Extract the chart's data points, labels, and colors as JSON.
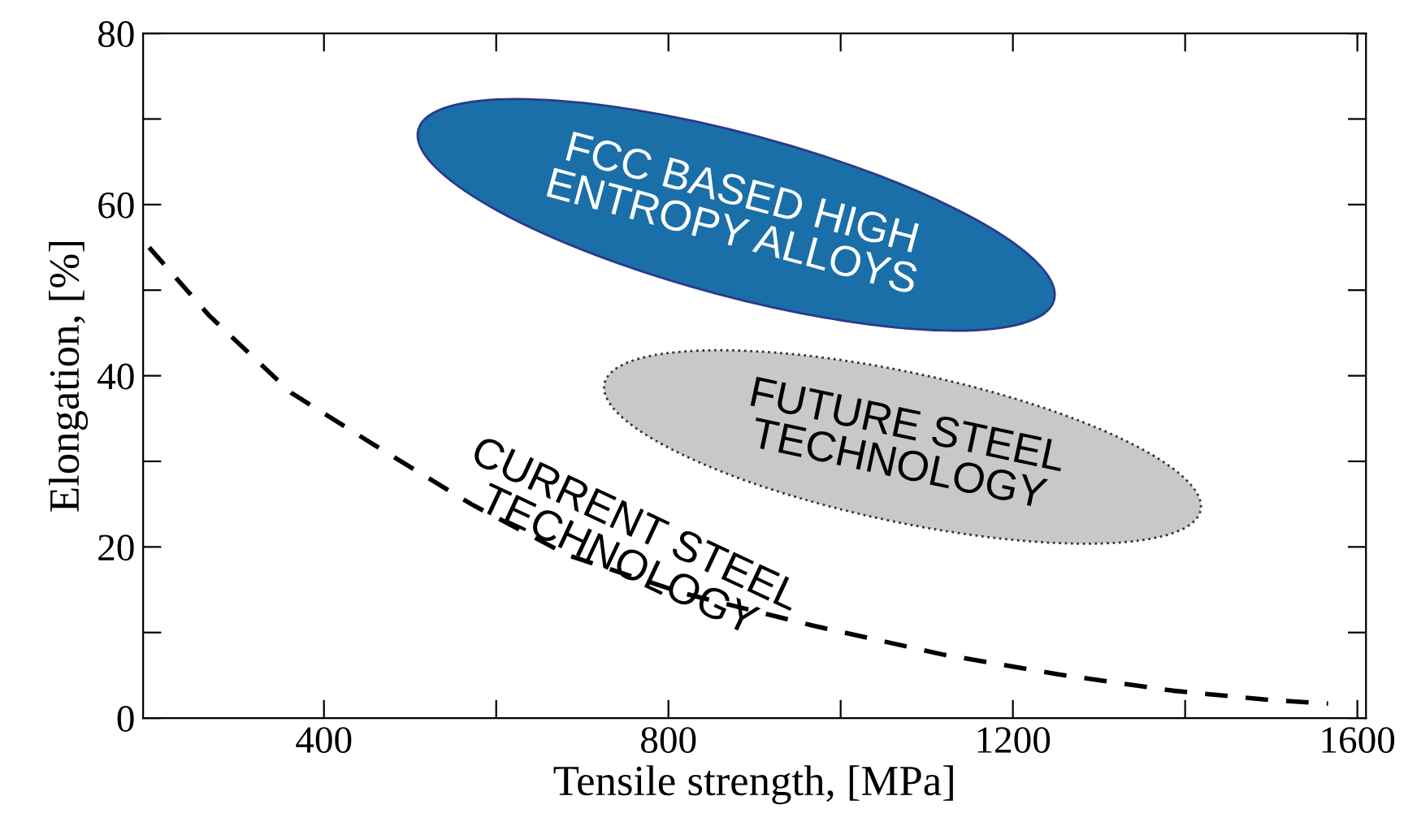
{
  "chart_data": {
    "type": "line",
    "xlabel": "Tensile strength, [MPa]",
    "ylabel": "Elongation, [%]",
    "x": [
      197,
      267,
      362,
      457,
      571,
      684,
      817,
      968,
      1120,
      1253,
      1386,
      1500,
      1566
    ],
    "series": [
      {
        "color": "#000000",
        "values": [
          55,
          47,
          38,
          32,
          25,
          19,
          14.6,
          10.8,
          7.4,
          5.1,
          3.2,
          2.1,
          1.7
        ]
      }
    ],
    "line_style": "dashed",
    "marker": "none",
    "grid": false,
    "legend": false,
    "xlim": [
      190,
      1610
    ],
    "xticks": [
      400,
      {
        "value": 600,
        "label": null
      },
      800,
      {
        "value": 1000,
        "label": null
      },
      1200,
      {
        "value": 1400,
        "label": null
      },
      1600
    ],
    "ylim": [
      0,
      80
    ],
    "yticks": [
      0,
      {
        "value": 10,
        "label": null
      },
      20,
      {
        "value": 30,
        "label": null
      },
      40,
      {
        "value": 50,
        "label": null
      },
      60,
      {
        "value": 70,
        "label": null
      },
      80
    ],
    "annotations": [
      "FCC BASED HIGH\nENTROPY ALLOYS",
      "FUTURE STEEL\nTECHNOLOGY",
      "CURRENT STEEL\nTECHNOLOGY"
    ]
  }
}
